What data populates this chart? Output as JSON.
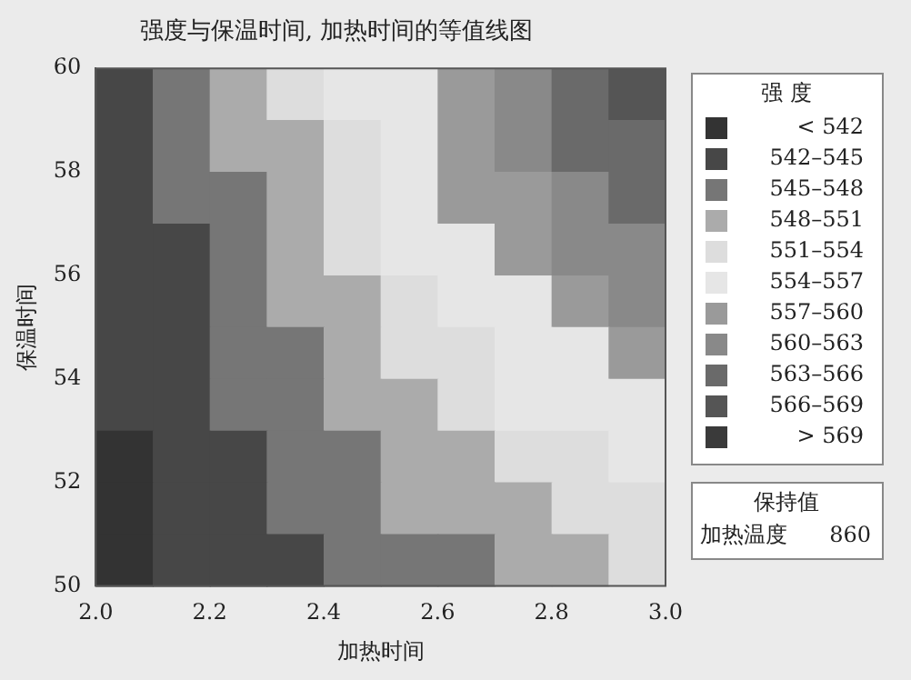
{
  "chart_data": {
    "type": "heatmap",
    "title": "强度与保温时间, 加热时间的等值线图",
    "xlabel": "加热时间",
    "ylabel": "保温时间",
    "legend_title": "强 度",
    "xlim": [
      2,
      3
    ],
    "xticks": [
      {
        "value": 2,
        "label": "2.0"
      },
      {
        "value": 2.2,
        "label": "2.2"
      },
      {
        "value": 2.4,
        "label": "2.4"
      },
      {
        "value": 2.6,
        "label": "2.6"
      },
      {
        "value": 2.8,
        "label": "2.8"
      },
      {
        "value": 3,
        "label": "3.0"
      }
    ],
    "ylim": [
      50,
      60
    ],
    "yticks": [
      50,
      52,
      54,
      56,
      58,
      60
    ],
    "cells": [
      [
        543.5,
        546.5,
        549.5,
        552.5,
        555.5,
        555.5,
        558.5,
        561.5,
        564.5,
        567.5
      ],
      [
        543.5,
        546.5,
        549.5,
        549.5,
        552.5,
        555.5,
        558.5,
        561.5,
        564.5,
        564.5
      ],
      [
        543.5,
        546.5,
        546.5,
        549.5,
        552.5,
        555.5,
        558.5,
        558.5,
        561.5,
        564.5
      ],
      [
        543.5,
        543.5,
        546.5,
        549.5,
        552.5,
        555.5,
        555.5,
        558.5,
        561.5,
        561.5
      ],
      [
        543.5,
        543.5,
        546.5,
        549.5,
        549.5,
        552.5,
        555.5,
        555.5,
        558.5,
        561.5
      ],
      [
        543.5,
        543.5,
        546.5,
        546.5,
        549.5,
        552.5,
        552.5,
        555.5,
        555.5,
        558.5
      ],
      [
        543.5,
        543.5,
        546.5,
        546.5,
        549.5,
        549.5,
        552.5,
        555.5,
        555.5,
        555.5
      ],
      [
        540.5,
        543.5,
        543.5,
        546.5,
        546.5,
        549.5,
        549.5,
        552.5,
        552.5,
        555.5
      ],
      [
        540.5,
        543.5,
        543.5,
        546.5,
        546.5,
        549.5,
        549.5,
        549.5,
        552.5,
        552.5
      ],
      [
        540.5,
        543.5,
        543.5,
        543.5,
        546.5,
        546.5,
        546.5,
        549.5,
        549.5,
        552.5
      ]
    ],
    "clim": [
      539,
      572
    ],
    "cticks": [
      {
        "value": 540.5,
        "label": "< 542"
      },
      {
        "value": 543.5,
        "label": "542–545"
      },
      {
        "value": 546.5,
        "label": "545–548"
      },
      {
        "value": 549.5,
        "label": "548–551"
      },
      {
        "value": 552.5,
        "label": "551–554"
      },
      {
        "value": 555.5,
        "label": "554–557"
      },
      {
        "value": 558.5,
        "label": "557–560"
      },
      {
        "value": 561.5,
        "label": "560–563"
      },
      {
        "value": 564.5,
        "label": "563–566"
      },
      {
        "value": 567.5,
        "label": "566–569"
      },
      {
        "value": 570.5,
        "label": "> 569"
      }
    ],
    "colors": [
      "#333333",
      "#474747",
      "#767676",
      "#ababab",
      "#dddddd",
      "#e6e6e6",
      "#9a9a9a",
      "#898989",
      "#6a6a6a",
      "#555555",
      "#3a3a3a"
    ],
    "annotations": [
      "保持值",
      "加热温度",
      "860"
    ]
  }
}
